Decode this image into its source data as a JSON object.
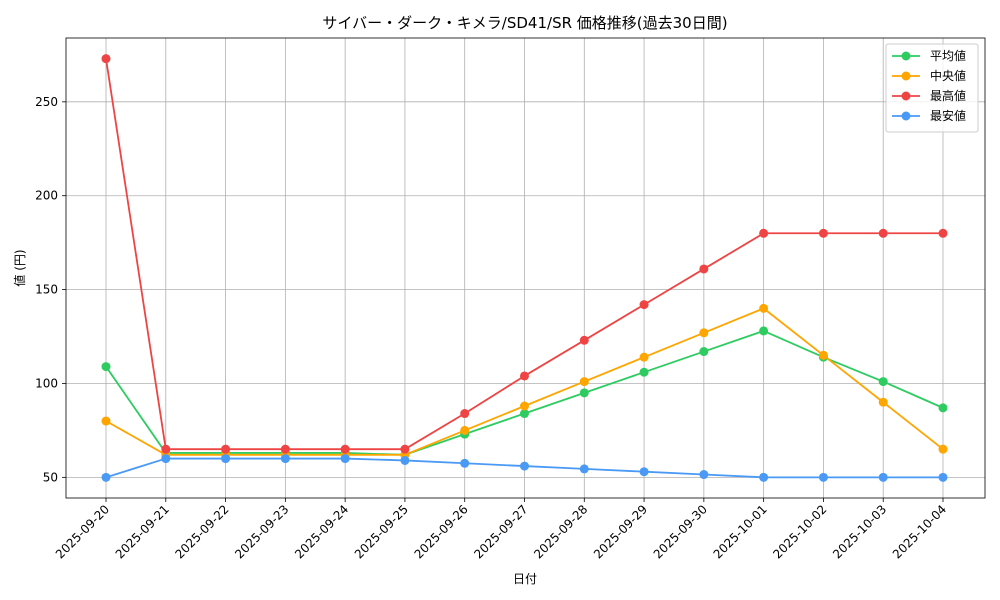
{
  "chart_data": {
    "type": "line",
    "title": "サイバー・ダーク・キメラ/SD41/SR 価格推移(過去30日間)",
    "xlabel": "日付",
    "ylabel": "値 (円)",
    "ylim": [
      39,
      284
    ],
    "yticks": [
      50,
      100,
      150,
      200,
      250
    ],
    "grid": true,
    "legend_position": "top-right",
    "categories": [
      "2025-09-20",
      "2025-09-21",
      "2025-09-22",
      "2025-09-23",
      "2025-09-24",
      "2025-09-25",
      "2025-09-26",
      "2025-09-27",
      "2025-09-28",
      "2025-09-29",
      "2025-09-30",
      "2025-10-01",
      "2025-10-02",
      "2025-10-03",
      "2025-10-04"
    ],
    "series": [
      {
        "name": "平均値",
        "color": "#2ecc60",
        "values": [
          109,
          63,
          63,
          63,
          63,
          62,
          73,
          84,
          95,
          106,
          117,
          128,
          114,
          101,
          87
        ]
      },
      {
        "name": "中央値",
        "color": "#ffa500",
        "values": [
          80,
          62,
          62,
          62,
          62,
          62,
          75,
          88,
          101,
          114,
          127,
          140,
          115,
          90,
          65
        ]
      },
      {
        "name": "最高値",
        "color": "#ef4444",
        "values": [
          273,
          65,
          65,
          65,
          65,
          65,
          84,
          104,
          123,
          142,
          161,
          180,
          180,
          180,
          180
        ]
      },
      {
        "name": "最安値",
        "color": "#4a9af5",
        "values": [
          50,
          60,
          60,
          60,
          60,
          59,
          57.5,
          56,
          54.5,
          53,
          51.5,
          50,
          50,
          50,
          50
        ]
      }
    ]
  }
}
